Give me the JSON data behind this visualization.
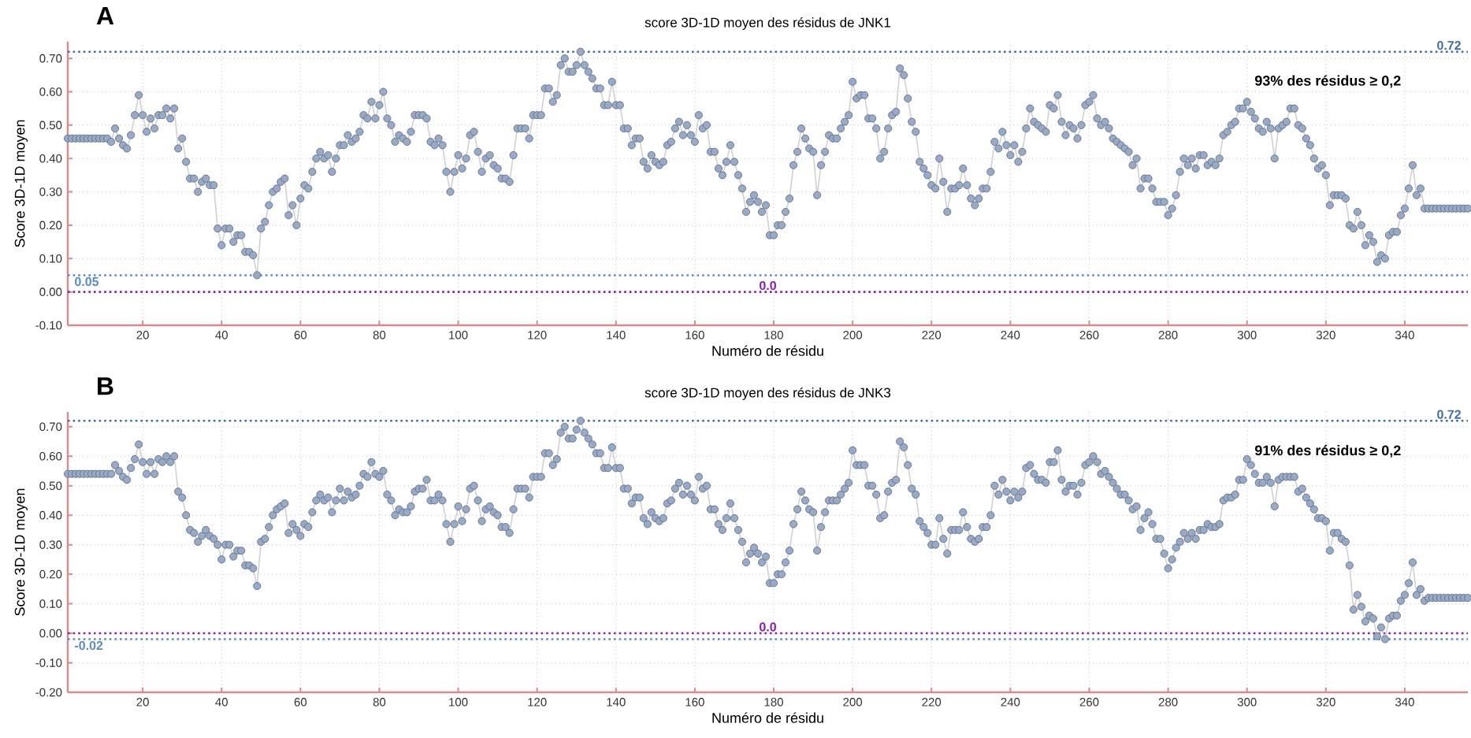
{
  "chart_data": [
    {
      "type": "line",
      "title": "score 3D-1D moyen des résidus de JNK1",
      "xlabel": "Numéro de résidu",
      "ylabel": "Score 3D-1D moyen",
      "annotations": [
        "A",
        "93% des résidus ≥ 0,2"
      ],
      "x": [
        1,
        2,
        3,
        4,
        5,
        6,
        7,
        8,
        9,
        10,
        11,
        12,
        13,
        14,
        15,
        16,
        17,
        18,
        19,
        20,
        21,
        22,
        23,
        24,
        25,
        26,
        27,
        28,
        29,
        30,
        31,
        32,
        33,
        34,
        35,
        36,
        37,
        38,
        39,
        40,
        41,
        42,
        43,
        44,
        45,
        46,
        47,
        48,
        49,
        50,
        51,
        52,
        53,
        54,
        55,
        56,
        57,
        58,
        59,
        60,
        61,
        62,
        63,
        64,
        65,
        66,
        67,
        68,
        69,
        70,
        71,
        72,
        73,
        74,
        75,
        76,
        77,
        78,
        79,
        80,
        81,
        82,
        83,
        84,
        85,
        86,
        87,
        88,
        89,
        90,
        91,
        92,
        93,
        94,
        95,
        96,
        97,
        98,
        99,
        100,
        101,
        102,
        103,
        104,
        105,
        106,
        107,
        108,
        109,
        110,
        111,
        112,
        113,
        114,
        115,
        116,
        117,
        118,
        119,
        120,
        121,
        122,
        123,
        124,
        125,
        126,
        127,
        128,
        129,
        130,
        131,
        132,
        133,
        134,
        135,
        136,
        137,
        138,
        139,
        140,
        141,
        142,
        143,
        144,
        145,
        146,
        147,
        148,
        149,
        150,
        151,
        152,
        153,
        154,
        155,
        156,
        157,
        158,
        159,
        160,
        161,
        162,
        163,
        164,
        165,
        166,
        167,
        168,
        169,
        170,
        171,
        172,
        173,
        174,
        175,
        176,
        177,
        178,
        179,
        180,
        181,
        182,
        183,
        184,
        185,
        186,
        187,
        188,
        189,
        190,
        191,
        192,
        193,
        194,
        195,
        196,
        197,
        198,
        199,
        200,
        201,
        202,
        203,
        204,
        205,
        206,
        207,
        208,
        209,
        210,
        211,
        212,
        213,
        214,
        215,
        216,
        217,
        218,
        219,
        220,
        221,
        222,
        223,
        224,
        225,
        226,
        227,
        228,
        229,
        230,
        231,
        232,
        233,
        234,
        235,
        236,
        237,
        238,
        239,
        240,
        241,
        242,
        243,
        244,
        245,
        246,
        247,
        248,
        249,
        250,
        251,
        252,
        253,
        254,
        255,
        256,
        257,
        258,
        259,
        260,
        261,
        262,
        263,
        264,
        265,
        266,
        267,
        268,
        269,
        270,
        271,
        272,
        273,
        274,
        275,
        276,
        277,
        278,
        279,
        280,
        281,
        282,
        283,
        284,
        285,
        286,
        287,
        288,
        289,
        290,
        291,
        292,
        293,
        294,
        295,
        296,
        297,
        298,
        299,
        300,
        301,
        302,
        303,
        304,
        305,
        306,
        307,
        308,
        309,
        310,
        311,
        312,
        313,
        314,
        315,
        316,
        317,
        318,
        319,
        320,
        321,
        322,
        323,
        324,
        325,
        326,
        327,
        328,
        329,
        330,
        331,
        332,
        333,
        334,
        335,
        336,
        337,
        338,
        339,
        340,
        341,
        342,
        343,
        344,
        345,
        346,
        347,
        348,
        349,
        350,
        351,
        352,
        353,
        354,
        355,
        356
      ],
      "series": [
        {
          "color": "#97abc8",
          "values": [
            0.46,
            0.46,
            0.46,
            0.46,
            0.46,
            0.46,
            0.46,
            0.46,
            0.46,
            0.46,
            0.46,
            0.45,
            0.49,
            0.46,
            0.44,
            0.43,
            0.47,
            0.53,
            0.59,
            0.53,
            0.48,
            0.52,
            0.49,
            0.53,
            0.53,
            0.55,
            0.52,
            0.55,
            0.43,
            0.46,
            0.39,
            0.34,
            0.34,
            0.3,
            0.33,
            0.34,
            0.32,
            0.32,
            0.19,
            0.14,
            0.19,
            0.19,
            0.15,
            0.17,
            0.17,
            0.12,
            0.12,
            0.11,
            0.05,
            0.19,
            0.21,
            0.26,
            0.3,
            0.31,
            0.33,
            0.34,
            0.23,
            0.26,
            0.2,
            0.28,
            0.32,
            0.31,
            0.36,
            0.4,
            0.42,
            0.4,
            0.41,
            0.36,
            0.4,
            0.44,
            0.44,
            0.47,
            0.45,
            0.46,
            0.48,
            0.53,
            0.52,
            0.57,
            0.52,
            0.56,
            0.6,
            0.52,
            0.5,
            0.45,
            0.47,
            0.46,
            0.45,
            0.48,
            0.53,
            0.53,
            0.53,
            0.52,
            0.45,
            0.44,
            0.46,
            0.44,
            0.36,
            0.3,
            0.36,
            0.41,
            0.37,
            0.4,
            0.47,
            0.48,
            0.42,
            0.36,
            0.4,
            0.41,
            0.38,
            0.37,
            0.34,
            0.34,
            0.33,
            0.41,
            0.49,
            0.49,
            0.49,
            0.46,
            0.53,
            0.53,
            0.53,
            0.61,
            0.61,
            0.57,
            0.59,
            0.68,
            0.7,
            0.66,
            0.66,
            0.68,
            0.72,
            0.68,
            0.66,
            0.64,
            0.61,
            0.61,
            0.56,
            0.56,
            0.63,
            0.56,
            0.56,
            0.49,
            0.49,
            0.44,
            0.46,
            0.46,
            0.39,
            0.37,
            0.41,
            0.39,
            0.38,
            0.39,
            0.44,
            0.45,
            0.49,
            0.51,
            0.47,
            0.5,
            0.47,
            0.45,
            0.53,
            0.49,
            0.5,
            0.42,
            0.42,
            0.37,
            0.35,
            0.39,
            0.44,
            0.39,
            0.35,
            0.31,
            0.24,
            0.27,
            0.29,
            0.27,
            0.24,
            0.26,
            0.17,
            0.17,
            0.2,
            0.2,
            0.24,
            0.28,
            0.38,
            0.42,
            0.49,
            0.46,
            0.43,
            0.42,
            0.29,
            0.38,
            0.42,
            0.47,
            0.46,
            0.46,
            0.49,
            0.51,
            0.53,
            0.63,
            0.58,
            0.59,
            0.59,
            0.52,
            0.52,
            0.49,
            0.4,
            0.42,
            0.49,
            0.53,
            0.54,
            0.67,
            0.65,
            0.58,
            0.51,
            0.48,
            0.39,
            0.37,
            0.35,
            0.32,
            0.31,
            0.4,
            0.33,
            0.24,
            0.31,
            0.31,
            0.32,
            0.37,
            0.32,
            0.28,
            0.26,
            0.28,
            0.31,
            0.31,
            0.36,
            0.45,
            0.43,
            0.48,
            0.44,
            0.41,
            0.44,
            0.39,
            0.42,
            0.49,
            0.55,
            0.51,
            0.5,
            0.49,
            0.48,
            0.56,
            0.55,
            0.59,
            0.51,
            0.47,
            0.5,
            0.49,
            0.46,
            0.5,
            0.56,
            0.57,
            0.59,
            0.52,
            0.5,
            0.51,
            0.49,
            0.46,
            0.45,
            0.44,
            0.43,
            0.42,
            0.38,
            0.4,
            0.31,
            0.34,
            0.34,
            0.31,
            0.27,
            0.27,
            0.27,
            0.23,
            0.25,
            0.29,
            0.36,
            0.4,
            0.38,
            0.4,
            0.37,
            0.41,
            0.41,
            0.38,
            0.39,
            0.38,
            0.4,
            0.47,
            0.48,
            0.5,
            0.51,
            0.55,
            0.55,
            0.57,
            0.54,
            0.52,
            0.49,
            0.48,
            0.51,
            0.49,
            0.4,
            0.49,
            0.5,
            0.51,
            0.55,
            0.55,
            0.5,
            0.49,
            0.46,
            0.44,
            0.4,
            0.37,
            0.38,
            0.35,
            0.26,
            0.29,
            0.29,
            0.29,
            0.28,
            0.2,
            0.19,
            0.24,
            0.2,
            0.14,
            0.17,
            0.15,
            0.09,
            0.11,
            0.1,
            0.17,
            0.18,
            0.18,
            0.23,
            0.25,
            0.31,
            0.38,
            0.29,
            0.31,
            0.25,
            0.25,
            0.25,
            0.25,
            0.25,
            0.25,
            0.25,
            0.25,
            0.25,
            0.25,
            0.25,
            0.25
          ]
        }
      ],
      "xlim": [
        1,
        356
      ],
      "ylim": [
        -0.1,
        0.75
      ],
      "xticks": [
        20,
        40,
        60,
        80,
        100,
        120,
        140,
        160,
        180,
        200,
        220,
        240,
        260,
        280,
        300,
        320,
        340
      ],
      "yticks": [
        {
          "value": -0.1,
          "label": "-0.10"
        },
        {
          "value": 0,
          "label": "0.00"
        },
        {
          "value": 0.1,
          "label": "0.10"
        },
        {
          "value": 0.2,
          "label": "0.20"
        },
        {
          "value": 0.3,
          "label": "0.30"
        },
        {
          "value": 0.4,
          "label": "0.40"
        },
        {
          "value": 0.5,
          "label": "0.50"
        },
        {
          "value": 0.6,
          "label": "0.60"
        },
        {
          "value": 0.7,
          "label": "0.70"
        }
      ],
      "ref_lines": [
        {
          "axis": "y",
          "value": 0.72,
          "label": "0.72",
          "color": "#3f6fa8",
          "line_style": "dotted"
        },
        {
          "axis": "y",
          "value": 0.05,
          "label": "0.05",
          "color": "#5b8ac8",
          "line_style": "dotted"
        },
        {
          "axis": "y",
          "value": 0,
          "label": "0.0",
          "color": "#8a1fb0",
          "line_style": "dotted"
        }
      ],
      "grid": true,
      "marker": "circle",
      "line_style": "solid"
    },
    {
      "type": "line",
      "title": "score 3D-1D moyen des résidus de JNK3",
      "xlabel": "Numéro de résidu",
      "ylabel": "Score 3D-1D moyen",
      "annotations": [
        "B",
        "91% des résidus ≥ 0,2"
      ],
      "x": [
        1,
        2,
        3,
        4,
        5,
        6,
        7,
        8,
        9,
        10,
        11,
        12,
        13,
        14,
        15,
        16,
        17,
        18,
        19,
        20,
        21,
        22,
        23,
        24,
        25,
        26,
        27,
        28,
        29,
        30,
        31,
        32,
        33,
        34,
        35,
        36,
        37,
        38,
        39,
        40,
        41,
        42,
        43,
        44,
        45,
        46,
        47,
        48,
        49,
        50,
        51,
        52,
        53,
        54,
        55,
        56,
        57,
        58,
        59,
        60,
        61,
        62,
        63,
        64,
        65,
        66,
        67,
        68,
        69,
        70,
        71,
        72,
        73,
        74,
        75,
        76,
        77,
        78,
        79,
        80,
        81,
        82,
        83,
        84,
        85,
        86,
        87,
        88,
        89,
        90,
        91,
        92,
        93,
        94,
        95,
        96,
        97,
        98,
        99,
        100,
        101,
        102,
        103,
        104,
        105,
        106,
        107,
        108,
        109,
        110,
        111,
        112,
        113,
        114,
        115,
        116,
        117,
        118,
        119,
        120,
        121,
        122,
        123,
        124,
        125,
        126,
        127,
        128,
        129,
        130,
        131,
        132,
        133,
        134,
        135,
        136,
        137,
        138,
        139,
        140,
        141,
        142,
        143,
        144,
        145,
        146,
        147,
        148,
        149,
        150,
        151,
        152,
        153,
        154,
        155,
        156,
        157,
        158,
        159,
        160,
        161,
        162,
        163,
        164,
        165,
        166,
        167,
        168,
        169,
        170,
        171,
        172,
        173,
        174,
        175,
        176,
        177,
        178,
        179,
        180,
        181,
        182,
        183,
        184,
        185,
        186,
        187,
        188,
        189,
        190,
        191,
        192,
        193,
        194,
        195,
        196,
        197,
        198,
        199,
        200,
        201,
        202,
        203,
        204,
        205,
        206,
        207,
        208,
        209,
        210,
        211,
        212,
        213,
        214,
        215,
        216,
        217,
        218,
        219,
        220,
        221,
        222,
        223,
        224,
        225,
        226,
        227,
        228,
        229,
        230,
        231,
        232,
        233,
        234,
        235,
        236,
        237,
        238,
        239,
        240,
        241,
        242,
        243,
        244,
        245,
        246,
        247,
        248,
        249,
        250,
        251,
        252,
        253,
        254,
        255,
        256,
        257,
        258,
        259,
        260,
        261,
        262,
        263,
        264,
        265,
        266,
        267,
        268,
        269,
        270,
        271,
        272,
        273,
        274,
        275,
        276,
        277,
        278,
        279,
        280,
        281,
        282,
        283,
        284,
        285,
        286,
        287,
        288,
        289,
        290,
        291,
        292,
        293,
        294,
        295,
        296,
        297,
        298,
        299,
        300,
        301,
        302,
        303,
        304,
        305,
        306,
        307,
        308,
        309,
        310,
        311,
        312,
        313,
        314,
        315,
        316,
        317,
        318,
        319,
        320,
        321,
        322,
        323,
        324,
        325,
        326,
        327,
        328,
        329,
        330,
        331,
        332,
        333,
        334,
        335,
        336,
        337,
        338,
        339,
        340,
        341,
        342,
        343,
        344,
        345,
        346,
        347,
        348,
        349,
        350,
        351,
        352,
        353,
        354,
        355,
        356
      ],
      "series": [
        {
          "color": "#97abc8",
          "values": [
            0.54,
            0.54,
            0.54,
            0.54,
            0.54,
            0.54,
            0.54,
            0.54,
            0.54,
            0.54,
            0.54,
            0.54,
            0.57,
            0.55,
            0.53,
            0.52,
            0.56,
            0.59,
            0.64,
            0.58,
            0.54,
            0.58,
            0.54,
            0.59,
            0.58,
            0.6,
            0.58,
            0.6,
            0.48,
            0.46,
            0.4,
            0.35,
            0.34,
            0.31,
            0.33,
            0.35,
            0.33,
            0.32,
            0.3,
            0.25,
            0.3,
            0.3,
            0.26,
            0.28,
            0.28,
            0.23,
            0.23,
            0.22,
            0.16,
            0.31,
            0.32,
            0.36,
            0.4,
            0.42,
            0.43,
            0.44,
            0.34,
            0.37,
            0.35,
            0.33,
            0.37,
            0.36,
            0.41,
            0.45,
            0.47,
            0.45,
            0.46,
            0.41,
            0.45,
            0.49,
            0.45,
            0.48,
            0.46,
            0.47,
            0.5,
            0.54,
            0.53,
            0.58,
            0.54,
            0.53,
            0.55,
            0.47,
            0.45,
            0.4,
            0.42,
            0.41,
            0.41,
            0.43,
            0.48,
            0.49,
            0.49,
            0.52,
            0.45,
            0.45,
            0.47,
            0.45,
            0.37,
            0.31,
            0.37,
            0.43,
            0.38,
            0.42,
            0.49,
            0.5,
            0.45,
            0.38,
            0.42,
            0.43,
            0.41,
            0.4,
            0.36,
            0.36,
            0.34,
            0.42,
            0.49,
            0.49,
            0.49,
            0.46,
            0.53,
            0.53,
            0.53,
            0.61,
            0.61,
            0.57,
            0.59,
            0.68,
            0.7,
            0.66,
            0.66,
            0.69,
            0.72,
            0.68,
            0.66,
            0.64,
            0.61,
            0.61,
            0.56,
            0.56,
            0.63,
            0.56,
            0.56,
            0.49,
            0.49,
            0.44,
            0.46,
            0.46,
            0.39,
            0.37,
            0.41,
            0.39,
            0.38,
            0.39,
            0.44,
            0.45,
            0.49,
            0.51,
            0.47,
            0.5,
            0.47,
            0.45,
            0.53,
            0.49,
            0.5,
            0.42,
            0.42,
            0.37,
            0.35,
            0.39,
            0.44,
            0.39,
            0.35,
            0.31,
            0.24,
            0.27,
            0.29,
            0.27,
            0.24,
            0.26,
            0.17,
            0.17,
            0.2,
            0.2,
            0.24,
            0.28,
            0.37,
            0.42,
            0.48,
            0.45,
            0.42,
            0.41,
            0.28,
            0.36,
            0.41,
            0.45,
            0.45,
            0.45,
            0.47,
            0.49,
            0.51,
            0.62,
            0.57,
            0.57,
            0.57,
            0.5,
            0.5,
            0.47,
            0.39,
            0.4,
            0.48,
            0.51,
            0.52,
            0.65,
            0.63,
            0.57,
            0.49,
            0.47,
            0.38,
            0.36,
            0.34,
            0.3,
            0.3,
            0.39,
            0.32,
            0.27,
            0.35,
            0.35,
            0.35,
            0.41,
            0.36,
            0.32,
            0.31,
            0.32,
            0.36,
            0.36,
            0.4,
            0.5,
            0.47,
            0.52,
            0.48,
            0.45,
            0.48,
            0.46,
            0.48,
            0.56,
            0.57,
            0.54,
            0.52,
            0.52,
            0.51,
            0.58,
            0.58,
            0.62,
            0.52,
            0.48,
            0.5,
            0.5,
            0.47,
            0.51,
            0.57,
            0.58,
            0.6,
            0.58,
            0.54,
            0.55,
            0.53,
            0.51,
            0.49,
            0.47,
            0.47,
            0.45,
            0.42,
            0.43,
            0.35,
            0.39,
            0.41,
            0.37,
            0.32,
            0.32,
            0.27,
            0.22,
            0.25,
            0.29,
            0.31,
            0.34,
            0.32,
            0.34,
            0.32,
            0.35,
            0.35,
            0.37,
            0.36,
            0.36,
            0.37,
            0.45,
            0.46,
            0.46,
            0.47,
            0.52,
            0.52,
            0.59,
            0.57,
            0.54,
            0.51,
            0.51,
            0.53,
            0.51,
            0.43,
            0.52,
            0.53,
            0.53,
            0.53,
            0.53,
            0.48,
            0.49,
            0.46,
            0.44,
            0.42,
            0.39,
            0.39,
            0.38,
            0.28,
            0.34,
            0.34,
            0.32,
            0.31,
            0.23,
            0.08,
            0.13,
            0.09,
            0.04,
            0.06,
            0.05,
            -0.01,
            0.02,
            -0.02,
            0.05,
            0.06,
            0.06,
            0.11,
            0.13,
            0.17,
            0.24,
            0.13,
            0.15,
            0.11,
            0.12,
            0.12,
            0.12,
            0.12,
            0.12,
            0.12,
            0.12,
            0.12,
            0.12,
            0.12,
            0.12
          ]
        }
      ],
      "xlim": [
        1,
        356
      ],
      "ylim": [
        -0.2,
        0.75
      ],
      "xticks": [
        20,
        40,
        60,
        80,
        100,
        120,
        140,
        160,
        180,
        200,
        220,
        240,
        260,
        280,
        300,
        320,
        340
      ],
      "yticks": [
        {
          "value": -0.2,
          "label": "-0.20"
        },
        {
          "value": -0.1,
          "label": "-0.10"
        },
        {
          "value": 0,
          "label": "0.00"
        },
        {
          "value": 0.1,
          "label": "0.10"
        },
        {
          "value": 0.2,
          "label": "0.20"
        },
        {
          "value": 0.3,
          "label": "0.30"
        },
        {
          "value": 0.4,
          "label": "0.40"
        },
        {
          "value": 0.5,
          "label": "0.50"
        },
        {
          "value": 0.6,
          "label": "0.60"
        },
        {
          "value": 0.7,
          "label": "0.70"
        }
      ],
      "ref_lines": [
        {
          "axis": "y",
          "value": 0.72,
          "label": "0.72",
          "color": "#3f6fa8",
          "line_style": "dotted"
        },
        {
          "axis": "y",
          "value": -0.02,
          "label": "-0.02",
          "color": "#5b8ac8",
          "line_style": "dotted"
        },
        {
          "axis": "y",
          "value": 0,
          "label": "0.0",
          "color": "#8a1fb0",
          "line_style": "dotted"
        }
      ],
      "grid": true,
      "marker": "circle",
      "line_style": "solid"
    }
  ]
}
